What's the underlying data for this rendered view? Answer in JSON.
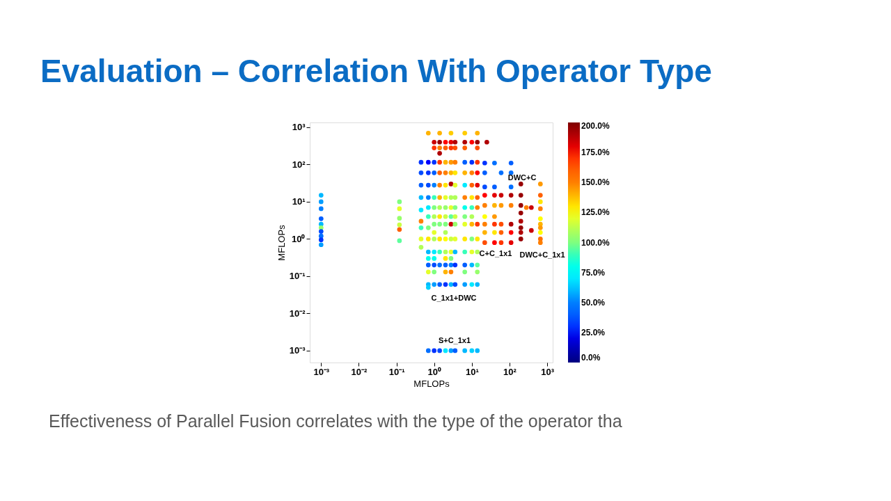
{
  "chart_data": {
    "type": "scatter",
    "title": "Evaluation – Correlation With Operator Type",
    "xlabel": "MFLOPs",
    "ylabel": "MFLOPs",
    "log": "xy",
    "grid": false,
    "marker": "circle",
    "xlim": [
      0.0005,
      1400
    ],
    "ylim": [
      0.00048,
      1350
    ],
    "xticks": [
      {
        "value": 0.001,
        "label": "10⁻³"
      },
      {
        "value": 0.01,
        "label": "10⁻²"
      },
      {
        "value": 0.1,
        "label": "10⁻¹"
      },
      {
        "value": 1,
        "label": "10⁰"
      },
      {
        "value": 10,
        "label": "10¹"
      },
      {
        "value": 100,
        "label": "10²"
      },
      {
        "value": 1000,
        "label": "10³"
      }
    ],
    "yticks": [
      {
        "value": 0.001,
        "label": "10⁻³"
      },
      {
        "value": 0.01,
        "label": "10⁻²"
      },
      {
        "value": 0.1,
        "label": "10⁻¹"
      },
      {
        "value": 1,
        "label": "10⁰"
      },
      {
        "value": 10,
        "label": "10¹"
      },
      {
        "value": 100,
        "label": "10²"
      },
      {
        "value": 1000,
        "label": "10³"
      }
    ],
    "clim": [
      0,
      200
    ],
    "cticks": [
      {
        "value": 0,
        "label": "0.0%"
      },
      {
        "value": 25,
        "label": "25.0%"
      },
      {
        "value": 50,
        "label": "50.0%"
      },
      {
        "value": 75,
        "label": "75.0%"
      },
      {
        "value": 100,
        "label": "100.0%"
      },
      {
        "value": 125,
        "label": "125.0%"
      },
      {
        "value": 150,
        "label": "150.0%"
      },
      {
        "value": 175,
        "label": "175.0%"
      },
      {
        "value": 200,
        "label": "200.0%"
      }
    ],
    "annotations": [
      "DWC+C",
      "C+C_1x1",
      "DWC+C_1x1",
      "C_1x1+DWC",
      "S+C_1x1",
      "Effectiveness of Parallel Fusion correlates with the type of the operator tha"
    ],
    "x": [
      0.001,
      0.001,
      0.001,
      0.001,
      0.001,
      0.001,
      0.001,
      0.001,
      0.001,
      0.001,
      0.12,
      0.12,
      0.12,
      0.12,
      0.12,
      0.12,
      0.45,
      0.45,
      0.45,
      0.45,
      0.45,
      0.45,
      0.45,
      0.45,
      0.45,
      0.7,
      0.7,
      0.7,
      0.7,
      0.7,
      0.7,
      0.7,
      0.7,
      0.7,
      0.7,
      0.7,
      0.7,
      0.7,
      0.7,
      0.7,
      0.7,
      1,
      1,
      1,
      1,
      1,
      1,
      1,
      1,
      1,
      1,
      1,
      1,
      1,
      1,
      1,
      1,
      1,
      1.4,
      1.4,
      1.4,
      1.4,
      1.4,
      1.4,
      1.4,
      1.4,
      1.4,
      1.4,
      1.4,
      1.4,
      1.4,
      1.4,
      1.4,
      1.4,
      2,
      2,
      2,
      2,
      2,
      2,
      2,
      2,
      2,
      2,
      2,
      2,
      2,
      2,
      2,
      2,
      2,
      2.8,
      2.8,
      2.8,
      2.8,
      2.8,
      2.8,
      2.8,
      2.8,
      2.8,
      2.8,
      2.8,
      2.8,
      2.8,
      2.8,
      2.8,
      2.8,
      2.8,
      3.6,
      3.6,
      3.6,
      3.6,
      3.6,
      3.6,
      3.6,
      3.6,
      3.6,
      3.6,
      3.6,
      3.6,
      3.6,
      3.6,
      6.5,
      6.5,
      6.5,
      6.5,
      6.5,
      6.5,
      6.5,
      6.5,
      6.5,
      6.5,
      6.5,
      6.5,
      6.5,
      6.5,
      6.5,
      6.5,
      10,
      10,
      10,
      10,
      10,
      10,
      10,
      10,
      10,
      10,
      10,
      10,
      10,
      14,
      14,
      14,
      14,
      14,
      14,
      14,
      14,
      14,
      14,
      14,
      14,
      14,
      14,
      14,
      22,
      22,
      22,
      22,
      22,
      22,
      22,
      22,
      22,
      25,
      40,
      40,
      40,
      40,
      40,
      40,
      40,
      40,
      60,
      60,
      60,
      60,
      60,
      60,
      110,
      110,
      110,
      110,
      110,
      110,
      110,
      110,
      200,
      200,
      200,
      200,
      200,
      200,
      200,
      200,
      280,
      380,
      380,
      660,
      660,
      660,
      660,
      660,
      660,
      660,
      660,
      660,
      660
    ],
    "values": [
      15,
      10,
      6.5,
      3.5,
      2.5,
      2,
      1.6,
      1.2,
      0.95,
      0.7,
      10,
      6.5,
      3.6,
      2.4,
      1.8,
      0.9,
      115,
      60,
      28,
      13,
      6,
      3,
      2,
      1,
      0.6,
      700,
      115,
      60,
      28,
      13,
      7,
      4,
      2,
      1,
      0.45,
      0.3,
      0.2,
      0.13,
      0.06,
      0.05,
      0.001,
      400,
      280,
      115,
      60,
      28,
      13,
      7,
      4,
      2.5,
      1.5,
      1,
      0.45,
      0.3,
      0.2,
      0.13,
      0.06,
      0.001,
      700,
      400,
      280,
      200,
      115,
      60,
      28,
      13,
      7,
      4,
      2.5,
      1,
      0.45,
      0.2,
      0.06,
      0.001,
      400,
      280,
      115,
      60,
      28,
      13,
      7,
      4,
      2.5,
      1.5,
      1,
      0.45,
      0.3,
      0.2,
      0.13,
      0.06,
      0.001,
      700,
      400,
      280,
      115,
      60,
      30,
      13,
      7,
      4,
      2.5,
      1,
      0.45,
      0.3,
      0.2,
      0.13,
      0.06,
      0.001,
      400,
      280,
      115,
      60,
      28,
      13,
      7,
      4,
      2.5,
      1,
      0.45,
      0.2,
      0.06,
      0.001,
      700,
      400,
      280,
      115,
      60,
      28,
      13,
      7,
      4,
      2.5,
      1,
      0.45,
      0.2,
      0.13,
      0.06,
      0.001,
      400,
      115,
      60,
      28,
      13,
      7,
      4,
      2.5,
      1,
      0.45,
      0.2,
      0.06,
      0.001,
      700,
      400,
      280,
      115,
      60,
      28,
      13,
      7,
      2.5,
      1,
      0.45,
      0.2,
      0.13,
      0.06,
      0.001,
      110,
      60,
      25,
      15,
      8,
      4,
      2.5,
      1.5,
      0.8,
      400,
      110,
      25,
      15,
      8,
      4,
      2.5,
      1.5,
      0.8,
      60,
      15,
      8,
      2.5,
      1.5,
      0.8,
      110,
      60,
      25,
      15,
      8,
      2.5,
      1.5,
      0.8,
      30,
      15,
      8,
      5,
      3,
      2,
      1.5,
      1,
      7,
      7,
      1.7,
      30,
      15,
      10,
      6.5,
      3.5,
      2.5,
      2,
      1.5,
      1,
      0.8
    ],
    "cvalues": [
      60,
      55,
      50,
      40,
      60,
      105,
      35,
      45,
      30,
      55,
      100,
      120,
      105,
      115,
      160,
      95,
      30,
      35,
      40,
      60,
      70,
      150,
      90,
      120,
      110,
      140,
      25,
      30,
      35,
      50,
      70,
      90,
      100,
      130,
      60,
      80,
      40,
      120,
      60,
      65,
      45,
      185,
      170,
      30,
      40,
      50,
      90,
      100,
      110,
      100,
      120,
      110,
      70,
      80,
      35,
      100,
      55,
      30,
      140,
      195,
      150,
      190,
      170,
      160,
      150,
      140,
      110,
      130,
      100,
      130,
      90,
      45,
      40,
      35,
      175,
      160,
      140,
      150,
      130,
      120,
      105,
      115,
      100,
      110,
      125,
      110,
      130,
      40,
      140,
      30,
      70,
      135,
      180,
      170,
      145,
      140,
      190,
      110,
      120,
      95,
      185,
      115,
      120,
      100,
      50,
      150,
      60,
      55,
      190,
      165,
      150,
      130,
      120,
      110,
      100,
      115,
      105,
      120,
      60,
      30,
      35,
      40,
      135,
      190,
      160,
      40,
      140,
      70,
      150,
      80,
      100,
      120,
      130,
      90,
      40,
      100,
      55,
      60,
      175,
      30,
      150,
      160,
      130,
      90,
      110,
      140,
      100,
      120,
      60,
      70,
      65,
      140,
      195,
      165,
      170,
      175,
      180,
      160,
      150,
      170,
      130,
      110,
      95,
      105,
      60,
      60,
      30,
      40,
      35,
      175,
      150,
      125,
      150,
      140,
      165,
      190,
      45,
      40,
      180,
      140,
      145,
      170,
      130,
      175,
      45,
      185,
      145,
      165,
      160,
      170,
      40,
      45,
      45,
      190,
      150,
      190,
      175,
      180,
      195,
      195,
      195,
      195,
      190,
      195,
      190,
      195,
      150,
      185,
      185,
      145,
      160,
      130,
      150,
      125,
      140,
      145,
      125,
      155,
      150
    ]
  }
}
